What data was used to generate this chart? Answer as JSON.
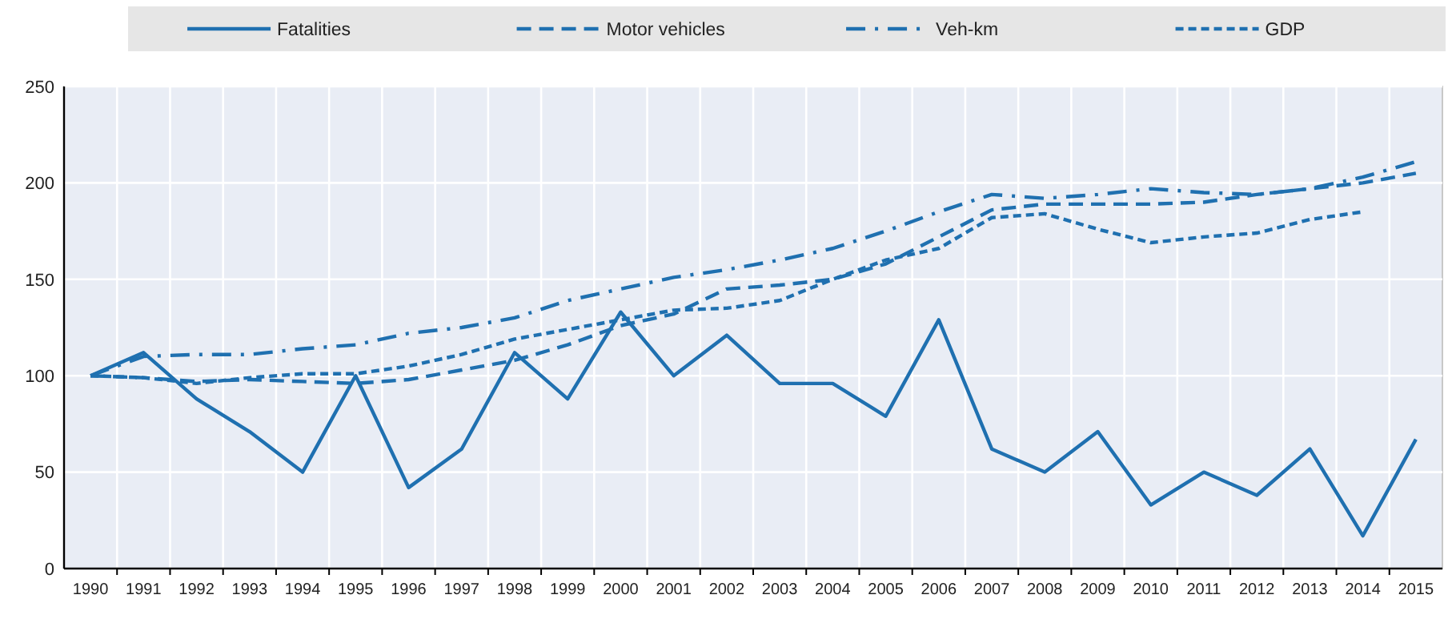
{
  "chart_data": {
    "type": "line",
    "categories": [
      "1990",
      "1991",
      "1992",
      "1993",
      "1994",
      "1995",
      "1996",
      "1997",
      "1998",
      "1999",
      "2000",
      "2001",
      "2002",
      "2003",
      "2004",
      "2005",
      "2006",
      "2007",
      "2008",
      "2009",
      "2010",
      "2011",
      "2012",
      "2013",
      "2014",
      "2015"
    ],
    "series": [
      {
        "name": "Fatalities",
        "color": "#1f70b0",
        "line_style": "solid",
        "values": [
          100,
          112,
          88,
          71,
          50,
          100,
          42,
          62,
          112,
          88,
          133,
          100,
          121,
          96,
          96,
          79,
          129,
          62,
          50,
          71,
          33,
          50,
          38,
          62,
          17,
          67
        ]
      },
      {
        "name": "Motor vehicles",
        "color": "#1f70b0",
        "line_style": "dashed",
        "values": [
          100,
          99,
          97,
          98,
          97,
          96,
          98,
          103,
          108,
          116,
          126,
          132,
          145,
          147,
          150,
          158,
          172,
          186,
          189,
          189,
          189,
          190,
          194,
          197,
          200,
          205
        ]
      },
      {
        "name": "Veh-km",
        "color": "#1f70b0",
        "line_style": "dashdot",
        "values": [
          100,
          110,
          111,
          111,
          114,
          116,
          122,
          125,
          130,
          139,
          145,
          151,
          155,
          160,
          166,
          175,
          185,
          194,
          192,
          194,
          197,
          195,
          194,
          197,
          203,
          211
        ]
      },
      {
        "name": "GDP",
        "color": "#1f70b0",
        "line_style": "dotted",
        "values": [
          100,
          99,
          96,
          99,
          101,
          101,
          105,
          111,
          119,
          124,
          129,
          134,
          135,
          139,
          150,
          160,
          166,
          182,
          184,
          176,
          169,
          172,
          174,
          181,
          185,
          null
        ]
      }
    ],
    "ylim": [
      0,
      250
    ],
    "yticks": [
      0,
      50,
      100,
      150,
      200,
      250
    ],
    "grid": true,
    "legend": "top",
    "marker": "none"
  }
}
